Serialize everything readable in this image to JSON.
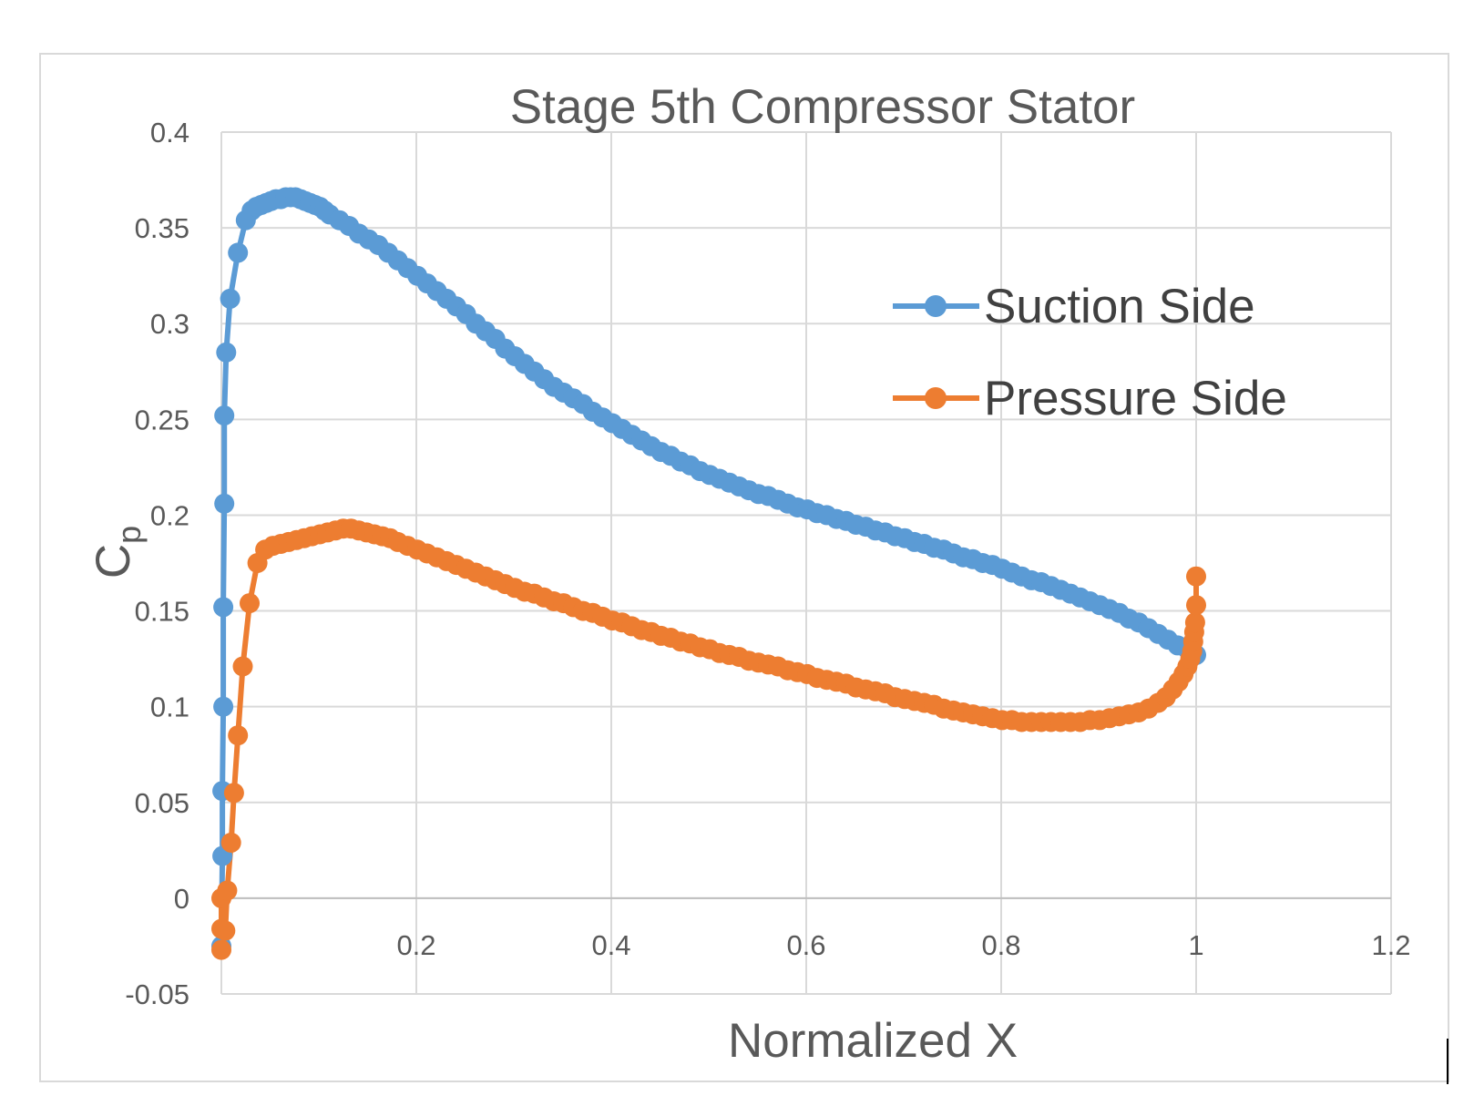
{
  "chart_data": {
    "type": "line",
    "title": "Stage 5th Compressor Stator",
    "xlabel": "Normalized X",
    "ylabel_main": "C",
    "ylabel_sub": "p",
    "xlim": [
      0,
      1.2
    ],
    "ylim": [
      -0.05,
      0.4
    ],
    "xticks": [
      "0",
      "0.2",
      "0.4",
      "0.6",
      "0.8",
      "1",
      "1.2"
    ],
    "yticks": [
      "-0.05",
      "0",
      "0.05",
      "0.1",
      "0.15",
      "0.2",
      "0.25",
      "0.3",
      "0.35",
      "0.4"
    ],
    "grid": true,
    "legend_position": "right",
    "series": [
      {
        "name": "Suction Side",
        "color": "#5b9bd5",
        "points": [
          [
            0.0,
            -0.025
          ],
          [
            0.001,
            0.022
          ],
          [
            0.001,
            0.056
          ],
          [
            0.002,
            0.1
          ],
          [
            0.002,
            0.152
          ],
          [
            0.003,
            0.206
          ],
          [
            0.003,
            0.252
          ],
          [
            0.005,
            0.285
          ],
          [
            0.009,
            0.313
          ],
          [
            0.017,
            0.337
          ],
          [
            0.025,
            0.354
          ],
          [
            0.031,
            0.359
          ],
          [
            0.036,
            0.361
          ],
          [
            0.041,
            0.362
          ],
          [
            0.046,
            0.363
          ],
          [
            0.051,
            0.364
          ],
          [
            0.056,
            0.365
          ],
          [
            0.061,
            0.365
          ],
          [
            0.066,
            0.366
          ],
          [
            0.071,
            0.366
          ],
          [
            0.076,
            0.366
          ],
          [
            0.081,
            0.365
          ],
          [
            0.086,
            0.364
          ],
          [
            0.091,
            0.363
          ],
          [
            0.096,
            0.362
          ],
          [
            0.101,
            0.361
          ],
          [
            0.106,
            0.359
          ],
          [
            0.111,
            0.357
          ],
          [
            0.121,
            0.354
          ],
          [
            0.131,
            0.351
          ],
          [
            0.141,
            0.347
          ],
          [
            0.151,
            0.344
          ],
          [
            0.161,
            0.341
          ],
          [
            0.171,
            0.337
          ],
          [
            0.181,
            0.333
          ],
          [
            0.191,
            0.329
          ],
          [
            0.201,
            0.325
          ],
          [
            0.211,
            0.321
          ],
          [
            0.221,
            0.317
          ],
          [
            0.231,
            0.313
          ],
          [
            0.241,
            0.309
          ],
          [
            0.251,
            0.305
          ],
          [
            0.261,
            0.3
          ],
          [
            0.271,
            0.296
          ],
          [
            0.281,
            0.292
          ],
          [
            0.291,
            0.287
          ],
          [
            0.301,
            0.283
          ],
          [
            0.311,
            0.279
          ],
          [
            0.321,
            0.275
          ],
          [
            0.331,
            0.271
          ],
          [
            0.341,
            0.267
          ],
          [
            0.351,
            0.264
          ],
          [
            0.361,
            0.261
          ],
          [
            0.371,
            0.258
          ],
          [
            0.381,
            0.254
          ],
          [
            0.391,
            0.251
          ],
          [
            0.401,
            0.248
          ],
          [
            0.411,
            0.245
          ],
          [
            0.421,
            0.242
          ],
          [
            0.431,
            0.239
          ],
          [
            0.441,
            0.236
          ],
          [
            0.451,
            0.233
          ],
          [
            0.461,
            0.231
          ],
          [
            0.471,
            0.228
          ],
          [
            0.481,
            0.226
          ],
          [
            0.491,
            0.223
          ],
          [
            0.501,
            0.221
          ],
          [
            0.511,
            0.219
          ],
          [
            0.521,
            0.217
          ],
          [
            0.531,
            0.215
          ],
          [
            0.541,
            0.213
          ],
          [
            0.551,
            0.211
          ],
          [
            0.561,
            0.21
          ],
          [
            0.571,
            0.208
          ],
          [
            0.581,
            0.206
          ],
          [
            0.591,
            0.204
          ],
          [
            0.601,
            0.203
          ],
          [
            0.611,
            0.201
          ],
          [
            0.621,
            0.2
          ],
          [
            0.631,
            0.198
          ],
          [
            0.641,
            0.197
          ],
          [
            0.651,
            0.195
          ],
          [
            0.661,
            0.194
          ],
          [
            0.671,
            0.192
          ],
          [
            0.681,
            0.191
          ],
          [
            0.691,
            0.189
          ],
          [
            0.701,
            0.188
          ],
          [
            0.711,
            0.186
          ],
          [
            0.721,
            0.185
          ],
          [
            0.731,
            0.183
          ],
          [
            0.741,
            0.182
          ],
          [
            0.751,
            0.18
          ],
          [
            0.761,
            0.178
          ],
          [
            0.771,
            0.177
          ],
          [
            0.781,
            0.175
          ],
          [
            0.791,
            0.174
          ],
          [
            0.801,
            0.172
          ],
          [
            0.811,
            0.17
          ],
          [
            0.821,
            0.168
          ],
          [
            0.831,
            0.166
          ],
          [
            0.841,
            0.165
          ],
          [
            0.851,
            0.163
          ],
          [
            0.861,
            0.161
          ],
          [
            0.871,
            0.159
          ],
          [
            0.881,
            0.157
          ],
          [
            0.891,
            0.155
          ],
          [
            0.901,
            0.153
          ],
          [
            0.911,
            0.151
          ],
          [
            0.921,
            0.149
          ],
          [
            0.931,
            0.146
          ],
          [
            0.941,
            0.144
          ],
          [
            0.951,
            0.141
          ],
          [
            0.961,
            0.138
          ],
          [
            0.971,
            0.135
          ],
          [
            0.981,
            0.132
          ],
          [
            0.991,
            0.13
          ],
          [
            1.0,
            0.127
          ]
        ]
      },
      {
        "name": "Pressure Side",
        "color": "#ed7d31",
        "points": [
          [
            0.0,
            -0.027
          ],
          [
            0.0,
            -0.016
          ],
          [
            0.0,
            0.0
          ],
          [
            0.004,
            -0.017
          ],
          [
            0.006,
            0.004
          ],
          [
            0.01,
            0.029
          ],
          [
            0.013,
            0.055
          ],
          [
            0.017,
            0.085
          ],
          [
            0.022,
            0.121
          ],
          [
            0.029,
            0.154
          ],
          [
            0.037,
            0.175
          ],
          [
            0.045,
            0.182
          ],
          [
            0.053,
            0.184
          ],
          [
            0.061,
            0.185
          ],
          [
            0.069,
            0.186
          ],
          [
            0.077,
            0.187
          ],
          [
            0.085,
            0.188
          ],
          [
            0.093,
            0.189
          ],
          [
            0.101,
            0.19
          ],
          [
            0.109,
            0.191
          ],
          [
            0.117,
            0.192
          ],
          [
            0.125,
            0.193
          ],
          [
            0.133,
            0.193
          ],
          [
            0.141,
            0.192
          ],
          [
            0.149,
            0.191
          ],
          [
            0.157,
            0.19
          ],
          [
            0.165,
            0.189
          ],
          [
            0.173,
            0.188
          ],
          [
            0.181,
            0.186
          ],
          [
            0.191,
            0.184
          ],
          [
            0.201,
            0.182
          ],
          [
            0.211,
            0.18
          ],
          [
            0.221,
            0.178
          ],
          [
            0.231,
            0.176
          ],
          [
            0.241,
            0.174
          ],
          [
            0.251,
            0.172
          ],
          [
            0.261,
            0.17
          ],
          [
            0.271,
            0.168
          ],
          [
            0.281,
            0.166
          ],
          [
            0.291,
            0.164
          ],
          [
            0.301,
            0.162
          ],
          [
            0.311,
            0.16
          ],
          [
            0.321,
            0.159
          ],
          [
            0.331,
            0.157
          ],
          [
            0.341,
            0.155
          ],
          [
            0.351,
            0.154
          ],
          [
            0.361,
            0.152
          ],
          [
            0.371,
            0.15
          ],
          [
            0.381,
            0.149
          ],
          [
            0.391,
            0.147
          ],
          [
            0.401,
            0.145
          ],
          [
            0.411,
            0.144
          ],
          [
            0.421,
            0.142
          ],
          [
            0.431,
            0.14
          ],
          [
            0.441,
            0.139
          ],
          [
            0.451,
            0.137
          ],
          [
            0.461,
            0.136
          ],
          [
            0.471,
            0.134
          ],
          [
            0.481,
            0.133
          ],
          [
            0.491,
            0.131
          ],
          [
            0.501,
            0.13
          ],
          [
            0.511,
            0.128
          ],
          [
            0.521,
            0.127
          ],
          [
            0.531,
            0.126
          ],
          [
            0.541,
            0.124
          ],
          [
            0.551,
            0.123
          ],
          [
            0.561,
            0.122
          ],
          [
            0.571,
            0.121
          ],
          [
            0.581,
            0.119
          ],
          [
            0.591,
            0.118
          ],
          [
            0.601,
            0.117
          ],
          [
            0.611,
            0.115
          ],
          [
            0.621,
            0.114
          ],
          [
            0.631,
            0.113
          ],
          [
            0.641,
            0.112
          ],
          [
            0.651,
            0.11
          ],
          [
            0.661,
            0.109
          ],
          [
            0.671,
            0.108
          ],
          [
            0.681,
            0.107
          ],
          [
            0.691,
            0.105
          ],
          [
            0.701,
            0.104
          ],
          [
            0.711,
            0.103
          ],
          [
            0.721,
            0.102
          ],
          [
            0.731,
            0.101
          ],
          [
            0.741,
            0.099
          ],
          [
            0.751,
            0.098
          ],
          [
            0.761,
            0.097
          ],
          [
            0.771,
            0.096
          ],
          [
            0.781,
            0.095
          ],
          [
            0.791,
            0.094
          ],
          [
            0.801,
            0.093
          ],
          [
            0.811,
            0.093
          ],
          [
            0.821,
            0.092
          ],
          [
            0.831,
            0.092
          ],
          [
            0.841,
            0.092
          ],
          [
            0.851,
            0.092
          ],
          [
            0.861,
            0.092
          ],
          [
            0.871,
            0.092
          ],
          [
            0.881,
            0.092
          ],
          [
            0.891,
            0.093
          ],
          [
            0.901,
            0.093
          ],
          [
            0.911,
            0.094
          ],
          [
            0.921,
            0.095
          ],
          [
            0.931,
            0.096
          ],
          [
            0.941,
            0.097
          ],
          [
            0.951,
            0.099
          ],
          [
            0.961,
            0.102
          ],
          [
            0.969,
            0.105
          ],
          [
            0.976,
            0.109
          ],
          [
            0.982,
            0.113
          ],
          [
            0.987,
            0.117
          ],
          [
            0.991,
            0.121
          ],
          [
            0.994,
            0.125
          ],
          [
            0.996,
            0.129
          ],
          [
            0.997,
            0.134
          ],
          [
            0.998,
            0.139
          ],
          [
            0.999,
            0.144
          ],
          [
            1.0,
            0.153
          ],
          [
            1.0,
            0.168
          ]
        ]
      }
    ]
  }
}
